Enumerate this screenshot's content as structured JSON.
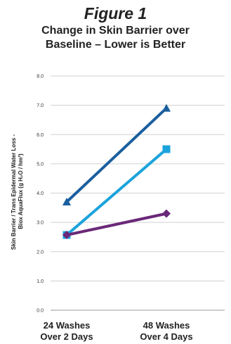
{
  "figure_label": "Figure 1",
  "chart_data": {
    "type": "line",
    "title_lines": [
      "Change in Skin Barrier over",
      "Baseline – Lower is Better"
    ],
    "ylabel_lines": [
      "Skin Barrier / Trans Epidermal Water Loss -",
      "Biox AquaFlux (g H₂O / hm²)"
    ],
    "xlabel": "",
    "categories": [
      [
        "24 Washes",
        "Over 2 Days"
      ],
      [
        "48 Washes",
        "Over 4 Days"
      ]
    ],
    "ylim": [
      0,
      8
    ],
    "yticks": [
      "0.0",
      "1.0",
      "2.0",
      "3.0",
      "4.0",
      "5.0",
      "6.0",
      "7.0",
      "8.0"
    ],
    "grid": true,
    "legend": "none",
    "series": [
      {
        "values": [
          3.7,
          6.9
        ],
        "color": "#1a5f9e",
        "marker": "triangle"
      },
      {
        "values": [
          2.57,
          5.5
        ],
        "color": "#1ba3dc",
        "marker": "square"
      },
      {
        "values": [
          2.57,
          3.3
        ],
        "color": "#6a2878",
        "marker": "diamond"
      }
    ]
  }
}
